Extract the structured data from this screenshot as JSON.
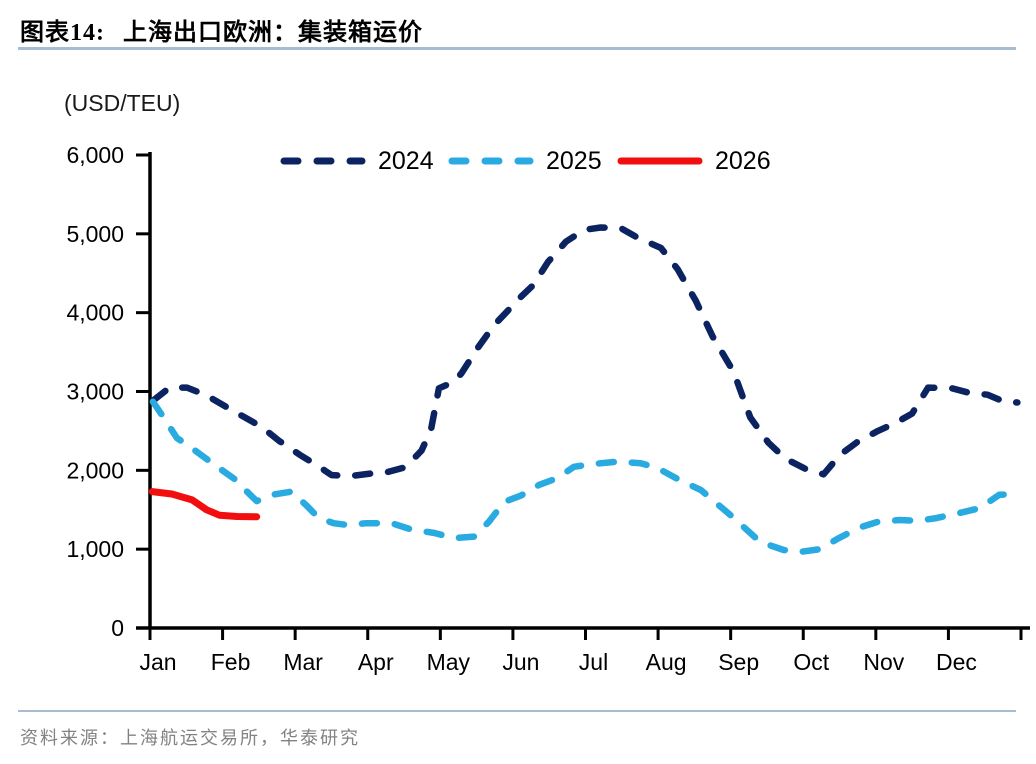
{
  "figure": {
    "label": "图表14:",
    "title": "上海出口欧洲：集装箱运价",
    "unit": "(USD/TEU)",
    "source": "资料来源：上海航运交易所，华泰研究"
  },
  "colors": {
    "series_2024": "#0b2360",
    "series_2025": "#29abe2",
    "series_2026": "#f20d0e",
    "rule": "#a6bdd3",
    "axis": "#000000",
    "source_text": "#828282"
  },
  "chart_data": {
    "type": "line",
    "title": "上海出口欧洲：集装箱运价",
    "ylabel": "(USD/TEU)",
    "x_axis": {
      "labels": [
        "Jan",
        "Feb",
        "Mar",
        "Apr",
        "May",
        "Jun",
        "Jul",
        "Aug",
        "Sep",
        "Oct",
        "Nov",
        "Dec"
      ],
      "range_months": [
        0,
        12
      ],
      "grid": false
    },
    "y_axis": {
      "min": 0,
      "max": 6000,
      "tick_step": 1000,
      "tick_labels": [
        "0",
        "1,000",
        "2,000",
        "3,000",
        "4,000",
        "5,000",
        "6,000"
      ],
      "grid": false
    },
    "legend_position": "top-center-inside",
    "series": [
      {
        "name": "2024",
        "color": "#0b2360",
        "style": "dashed",
        "points": [
          [
            0.05,
            2890
          ],
          [
            0.27,
            3050
          ],
          [
            0.51,
            3050
          ],
          [
            0.78,
            2950
          ],
          [
            1.06,
            2800
          ],
          [
            1.29,
            2680
          ],
          [
            1.54,
            2550
          ],
          [
            1.77,
            2380
          ],
          [
            2.06,
            2200
          ],
          [
            2.29,
            2070
          ],
          [
            2.5,
            1940
          ],
          [
            2.78,
            1930
          ],
          [
            3.05,
            1960
          ],
          [
            3.28,
            1980
          ],
          [
            3.52,
            2040
          ],
          [
            3.74,
            2250
          ],
          [
            3.87,
            2510
          ],
          [
            3.98,
            3040
          ],
          [
            4.18,
            3120
          ],
          [
            4.29,
            3230
          ],
          [
            4.52,
            3560
          ],
          [
            4.74,
            3840
          ],
          [
            5.11,
            4200
          ],
          [
            5.28,
            4350
          ],
          [
            5.48,
            4640
          ],
          [
            5.73,
            4900
          ],
          [
            5.98,
            5050
          ],
          [
            6.21,
            5080
          ],
          [
            6.49,
            5070
          ],
          [
            6.72,
            4950
          ],
          [
            7.04,
            4820
          ],
          [
            7.27,
            4550
          ],
          [
            7.52,
            4150
          ],
          [
            7.75,
            3700
          ],
          [
            8.04,
            3250
          ],
          [
            8.27,
            2670
          ],
          [
            8.52,
            2350
          ],
          [
            8.75,
            2150
          ],
          [
            9.07,
            2000
          ],
          [
            9.28,
            1950
          ],
          [
            9.51,
            2200
          ],
          [
            9.76,
            2370
          ],
          [
            10.03,
            2500
          ],
          [
            10.27,
            2600
          ],
          [
            10.5,
            2720
          ],
          [
            10.72,
            3050
          ],
          [
            11.05,
            3040
          ],
          [
            11.3,
            2980
          ],
          [
            11.54,
            2960
          ],
          [
            11.77,
            2870
          ],
          [
            11.95,
            2860
          ]
        ]
      },
      {
        "name": "2025",
        "color": "#29abe2",
        "style": "dashed",
        "points": [
          [
            0.04,
            2870
          ],
          [
            0.18,
            2680
          ],
          [
            0.37,
            2410
          ],
          [
            0.55,
            2300
          ],
          [
            0.85,
            2095
          ],
          [
            1.18,
            1880
          ],
          [
            1.37,
            1700
          ],
          [
            1.47,
            1610
          ],
          [
            1.68,
            1690
          ],
          [
            1.95,
            1730
          ],
          [
            2.16,
            1550
          ],
          [
            2.32,
            1400
          ],
          [
            2.53,
            1330
          ],
          [
            2.73,
            1305
          ],
          [
            2.98,
            1330
          ],
          [
            3.33,
            1330
          ],
          [
            3.6,
            1250
          ],
          [
            3.92,
            1205
          ],
          [
            4.19,
            1140
          ],
          [
            4.47,
            1160
          ],
          [
            4.67,
            1350
          ],
          [
            4.88,
            1600
          ],
          [
            5.11,
            1680
          ],
          [
            5.36,
            1815
          ],
          [
            5.61,
            1900
          ],
          [
            5.84,
            2045
          ],
          [
            6.1,
            2080
          ],
          [
            6.44,
            2110
          ],
          [
            6.76,
            2090
          ],
          [
            6.99,
            2030
          ],
          [
            7.31,
            1870
          ],
          [
            7.59,
            1750
          ],
          [
            8.0,
            1430
          ],
          [
            8.41,
            1090
          ],
          [
            8.73,
            990
          ],
          [
            8.96,
            965
          ],
          [
            9.23,
            1000
          ],
          [
            9.47,
            1130
          ],
          [
            9.76,
            1270
          ],
          [
            10.02,
            1345
          ],
          [
            10.33,
            1370
          ],
          [
            10.57,
            1360
          ],
          [
            10.81,
            1390
          ],
          [
            11.16,
            1460
          ],
          [
            11.43,
            1520
          ],
          [
            11.7,
            1690
          ],
          [
            11.91,
            1700
          ]
        ]
      },
      {
        "name": "2026",
        "color": "#f20d0e",
        "style": "solid",
        "points": [
          [
            0.03,
            1730
          ],
          [
            0.3,
            1700
          ],
          [
            0.58,
            1625
          ],
          [
            0.78,
            1500
          ],
          [
            0.96,
            1430
          ],
          [
            1.2,
            1415
          ],
          [
            1.47,
            1410
          ]
        ]
      }
    ]
  }
}
